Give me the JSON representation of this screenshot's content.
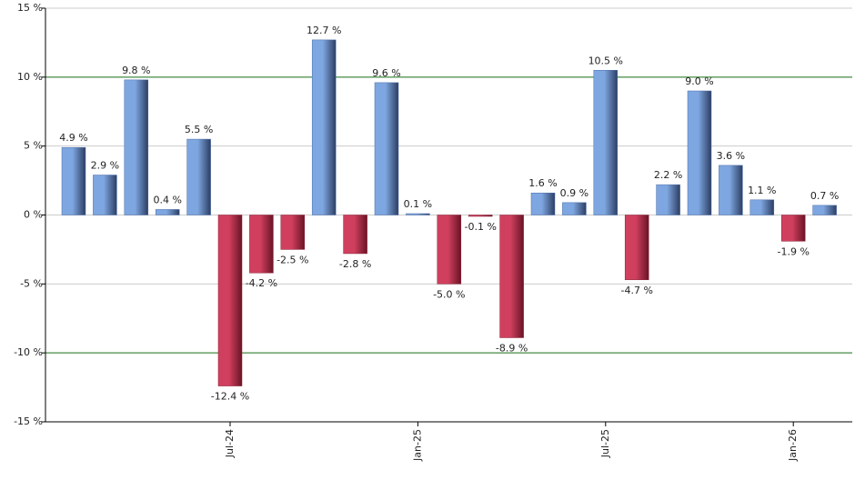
{
  "chart_data": {
    "type": "bar",
    "categories": [
      null,
      null,
      null,
      null,
      null,
      "Jul-24",
      null,
      null,
      null,
      null,
      null,
      "Jan-25",
      null,
      null,
      null,
      null,
      null,
      "Jul-25",
      null,
      null,
      null,
      null,
      null,
      "Jan-26",
      null
    ],
    "values": [
      4.9,
      2.9,
      9.8,
      0.4,
      5.5,
      -12.4,
      -4.2,
      -2.5,
      12.7,
      -2.8,
      9.6,
      0.1,
      -5.0,
      -0.1,
      -8.9,
      1.6,
      0.9,
      10.5,
      -4.7,
      2.2,
      9.0,
      3.6,
      1.1,
      -1.9,
      0.7
    ],
    "value_labels": [
      "4.9 %",
      "2.9 %",
      "9.8 %",
      "0.4 %",
      "5.5 %",
      "-12.4 %",
      "-4.2 %",
      "-2.5 %",
      "12.7 %",
      "-2.8 %",
      "9.6 %",
      "0.1 %",
      "-5.0 %",
      "-0.1 %",
      "-8.9 %",
      "1.6 %",
      "0.9 %",
      "10.5 %",
      "-4.7 %",
      "2.2 %",
      "9.0 %",
      "3.6 %",
      "1.1 %",
      "-1.9 %",
      "0.7 %"
    ],
    "positive_color": "#7ea6e0",
    "negative_color": "#d0405e",
    "ylim": [
      -15,
      15
    ],
    "yticks": [
      {
        "value": -15,
        "label": "-15 %"
      },
      {
        "value": -10,
        "label": "-10 %"
      },
      {
        "value": -5,
        "label": "-5 %"
      },
      {
        "value": 0,
        "label": "0 %"
      },
      {
        "value": 5,
        "label": "5 %"
      },
      {
        "value": 10,
        "label": "10 %"
      },
      {
        "value": 15,
        "label": "15 %"
      }
    ],
    "grid": true,
    "grid_color": "#cccccc",
    "reference_lines": [
      {
        "value": 10,
        "color": "#1e7a1e"
      },
      {
        "value": -10,
        "color": "#1e7a1e"
      }
    ]
  }
}
